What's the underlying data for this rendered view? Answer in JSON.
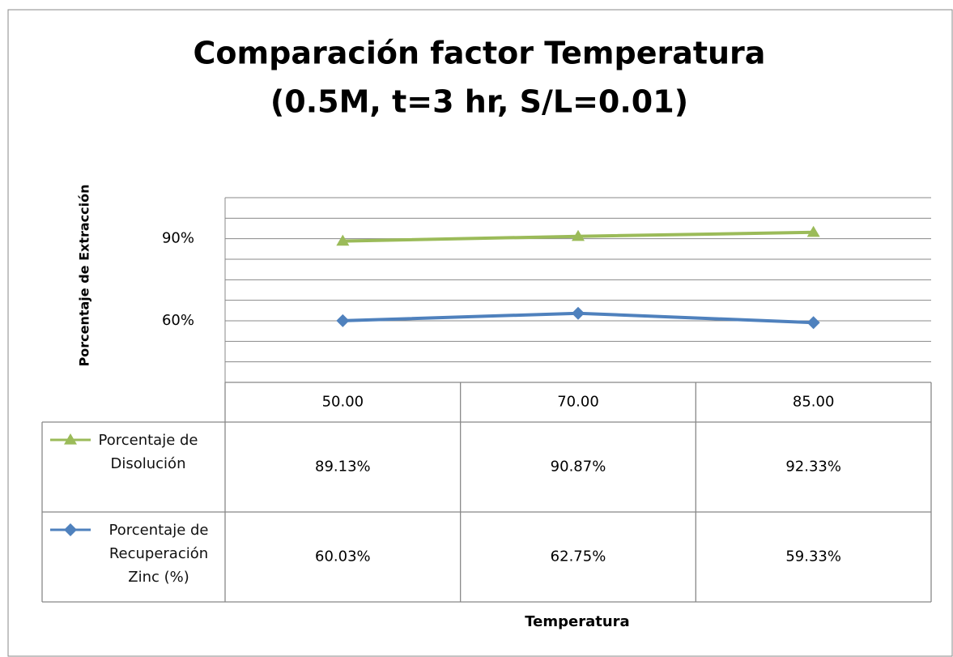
{
  "chart_data": {
    "type": "line",
    "title": "Comparación factor Temperatura",
    "subtitle": "(0.5M, t=3 hr, S/L=0.01)",
    "y_label": "Porcentaje de Extracción",
    "x_label": "Temperatura",
    "categories": [
      "50.00",
      "70.00",
      "85.00"
    ],
    "series": [
      {
        "name": "Porcentaje de Disolución",
        "color": "#9bbb59",
        "marker": "triangle",
        "values": [
          89.13,
          90.87,
          92.33
        ],
        "value_labels": [
          "89.13%",
          "90.87%",
          "92.33%"
        ]
      },
      {
        "name": "Porcentaje de Recuperación Zinc (%)",
        "color": "#4f81bd",
        "marker": "diamond",
        "values": [
          60.03,
          62.75,
          59.33
        ],
        "value_labels": [
          "60.03%",
          "62.75%",
          "59.33%"
        ]
      }
    ],
    "ylim": [
      37.5,
      105
    ],
    "yticks": [
      {
        "value": 37.5,
        "label": null
      },
      {
        "value": 45,
        "label": null
      },
      {
        "value": 52.5,
        "label": null
      },
      {
        "value": 60,
        "label": "60%"
      },
      {
        "value": 67.5,
        "label": null
      },
      {
        "value": 75,
        "label": null
      },
      {
        "value": 82.5,
        "label": null
      },
      {
        "value": 90,
        "label": "90%"
      },
      {
        "value": 97.5,
        "label": null
      },
      {
        "value": 105,
        "label": null
      }
    ],
    "grid": true,
    "data_table": true
  }
}
